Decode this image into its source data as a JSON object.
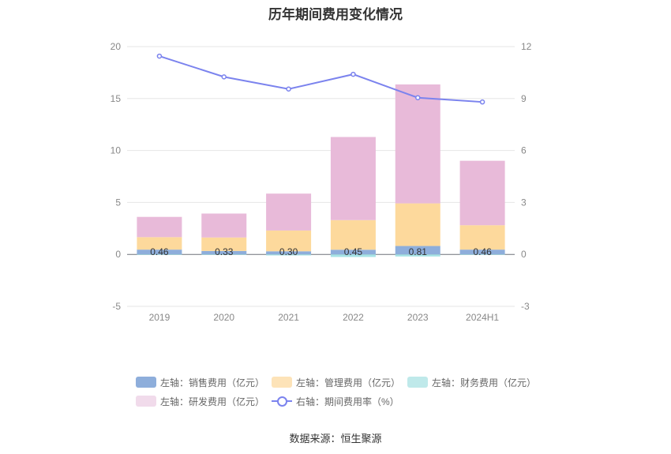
{
  "chart_data": {
    "type": "bar",
    "title": "历年期间费用变化情况",
    "categories": [
      "2019",
      "2020",
      "2021",
      "2022",
      "2023",
      "2024H1"
    ],
    "stacked": true,
    "left_axis": {
      "min": -5,
      "max": 20,
      "ticks": [
        "-5",
        "0",
        "5",
        "10",
        "15",
        "20"
      ]
    },
    "right_axis": {
      "min": -3,
      "max": 12,
      "ticks": [
        "-3",
        "0",
        "3",
        "6",
        "9",
        "12"
      ]
    },
    "series": [
      {
        "name": "左轴：销售费用（亿元）",
        "type": "bar",
        "axis": "left",
        "color": "#8eaedb",
        "values": [
          0.46,
          0.33,
          0.3,
          0.45,
          0.81,
          0.46
        ],
        "labels": [
          "0.46",
          "0.33",
          "0.30",
          "0.45",
          "0.81",
          "0.46"
        ]
      },
      {
        "name": "左轴：管理费用（亿元）",
        "type": "bar",
        "axis": "left",
        "color": "#fdd99c",
        "values": [
          1.2,
          1.3,
          2.0,
          2.85,
          4.1,
          2.35
        ]
      },
      {
        "name": "左轴：财务费用（亿元）",
        "type": "bar",
        "axis": "left",
        "color": "#a6e3e6",
        "values": [
          -0.05,
          -0.05,
          -0.1,
          -0.25,
          -0.2,
          -0.05
        ]
      },
      {
        "name": "左轴：研发费用（亿元）",
        "type": "bar",
        "axis": "left",
        "color": "#e8bad9",
        "values": [
          1.95,
          2.3,
          3.55,
          8.0,
          11.45,
          6.2
        ]
      },
      {
        "name": "右轴：期间费用率（%）",
        "type": "line",
        "axis": "right",
        "color": "#7b83ee",
        "values": [
          11.45,
          10.25,
          9.55,
          10.4,
          9.05,
          8.8
        ]
      }
    ],
    "grid": true,
    "legend_position": "bottom"
  },
  "legend": {
    "row1": [
      "左轴：销售费用（亿元）",
      "左轴：管理费用（亿元）",
      "左轴：财务费用（亿元）"
    ],
    "row2": [
      "左轴：研发费用（亿元）",
      "右轴：期间费用率（%）"
    ]
  },
  "source": "数据来源：恒生聚源"
}
